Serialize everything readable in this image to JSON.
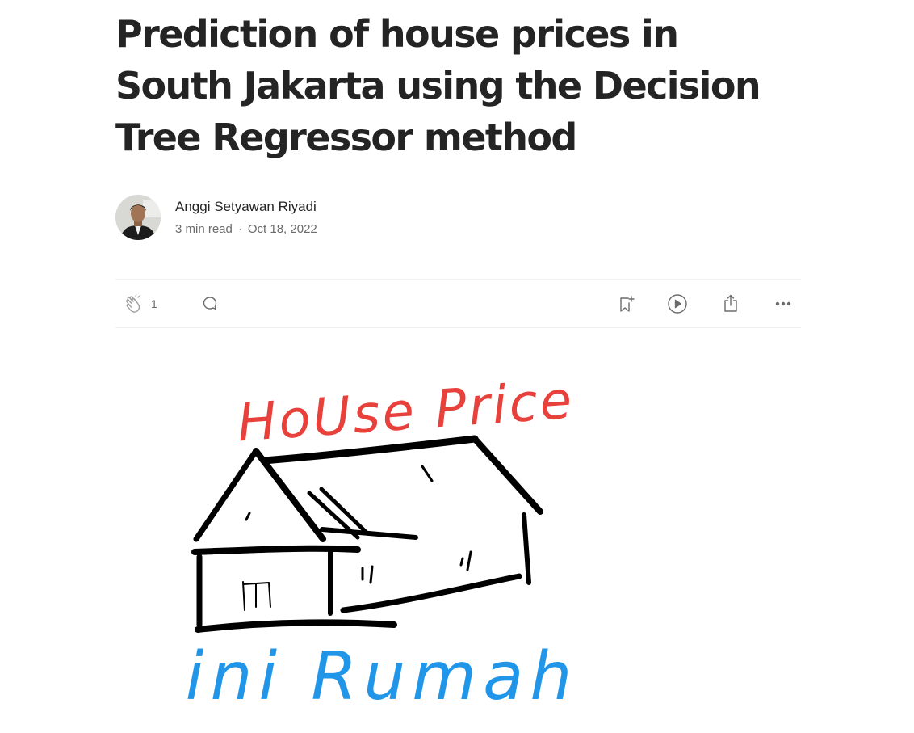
{
  "article": {
    "title": "Prediction of house prices in South Jakarta using the Decision Tree Regressor method"
  },
  "byline": {
    "author": "Anggi Setyawan Riyadi",
    "read_time": "3 min read",
    "separator": "·",
    "date": "Oct 18, 2022"
  },
  "actions": {
    "clap_count": "1",
    "icons": {
      "clap": "clap-icon",
      "respond": "comment-icon",
      "save": "bookmark-add-icon",
      "listen": "play-icon",
      "share": "share-icon",
      "more": "more-icon"
    }
  },
  "hero": {
    "top_text": "HoUse Price",
    "bottom_text": "ini Rumah",
    "colors": {
      "top_text": "#e8403a",
      "bottom_text": "#2196e8",
      "house": "#000000"
    }
  },
  "colors": {
    "title": "#242424",
    "muted": "#6b6b6b",
    "divider": "#f0f0f0"
  }
}
